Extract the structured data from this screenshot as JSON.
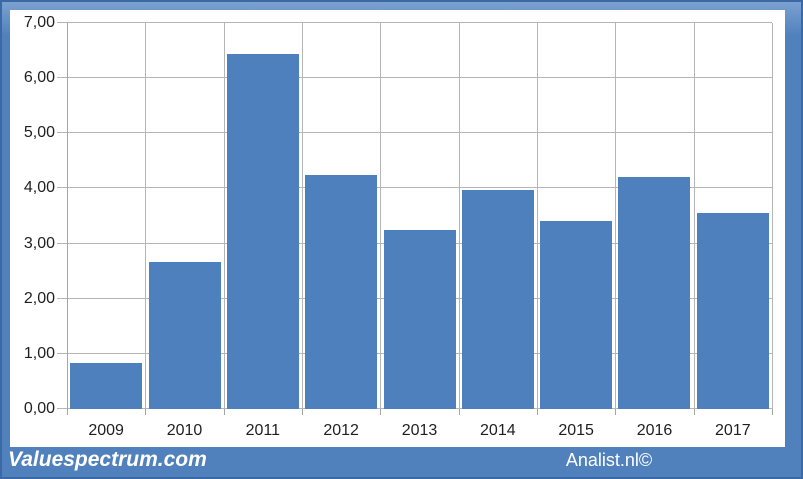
{
  "chart_data": {
    "type": "bar",
    "categories": [
      "2009",
      "2010",
      "2011",
      "2012",
      "2013",
      "2014",
      "2015",
      "2016",
      "2017"
    ],
    "values": [
      0.83,
      2.67,
      6.43,
      4.24,
      3.24,
      3.98,
      3.41,
      4.2,
      3.56
    ],
    "title": "",
    "xlabel": "",
    "ylabel": "",
    "ylim": [
      0,
      7
    ],
    "y_tick_step": 1,
    "y_tick_labels": [
      "0,00",
      "1,00",
      "2,00",
      "3,00",
      "4,00",
      "5,00",
      "6,00",
      "7,00"
    ],
    "grid": true,
    "legend": false
  },
  "footer": {
    "left_text": "Valuespectrum.com",
    "right_text": "Analist.nl©"
  },
  "colors": {
    "bar": "#4d80bd",
    "frame": "#5181bd",
    "frame_border": "#3a69a5",
    "plot_bg": "#ffffff",
    "gridline": "#b5b5b5",
    "axis": "#a6a6a6",
    "tick_label": "#1f1f1f",
    "footer_text": "#ffffff"
  }
}
